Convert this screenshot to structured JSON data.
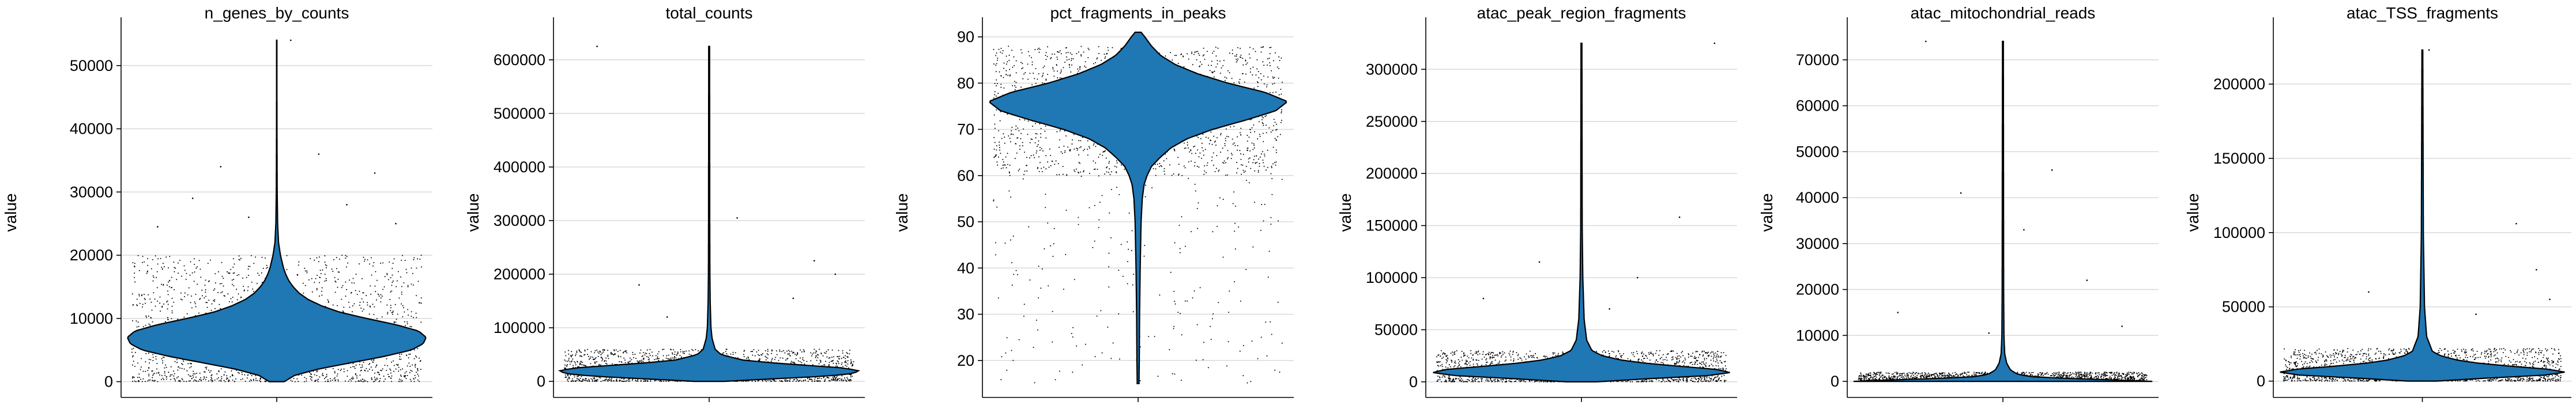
{
  "chart_data": [
    {
      "type": "violin",
      "title": "n_genes_by_counts",
      "ylabel": "value",
      "ylim": [
        -2500,
        56000
      ],
      "yticks": [
        0,
        10000,
        20000,
        30000,
        40000,
        50000
      ],
      "ytick_labels": [
        "0",
        "10000",
        "20000",
        "30000",
        "40000",
        "50000"
      ],
      "grid": true,
      "violin": {
        "min": 0,
        "max": 54000,
        "median": 7200,
        "mode": 7200,
        "profile": [
          [
            0,
            0.05
          ],
          [
            1000,
            0.12
          ],
          [
            2000,
            0.28
          ],
          [
            3000,
            0.5
          ],
          [
            4000,
            0.72
          ],
          [
            5000,
            0.9
          ],
          [
            6000,
            0.98
          ],
          [
            7000,
            1.0
          ],
          [
            8000,
            0.95
          ],
          [
            9000,
            0.8
          ],
          [
            10000,
            0.6
          ],
          [
            11000,
            0.42
          ],
          [
            12000,
            0.3
          ],
          [
            13000,
            0.21
          ],
          [
            14000,
            0.15
          ],
          [
            15000,
            0.11
          ],
          [
            16000,
            0.08
          ],
          [
            17000,
            0.06
          ],
          [
            18000,
            0.045
          ],
          [
            20000,
            0.025
          ],
          [
            22000,
            0.012
          ],
          [
            25000,
            0.006
          ],
          [
            30000,
            0.003
          ],
          [
            40000,
            0.0015
          ],
          [
            54000,
            0.001
          ]
        ]
      },
      "scatter": {
        "core_min": 0,
        "core_max": 20000,
        "tail_points": [
          [
            0.3,
            36000
          ],
          [
            -0.4,
            34000
          ],
          [
            0.7,
            33000
          ],
          [
            -0.6,
            29000
          ],
          [
            0.5,
            28000
          ],
          [
            -0.2,
            26000
          ],
          [
            0.85,
            25000
          ],
          [
            -0.85,
            24500
          ],
          [
            0.1,
            54000
          ]
        ]
      }
    },
    {
      "type": "violin",
      "title": "total_counts",
      "ylabel": "value",
      "ylim": [
        -30000,
        660000
      ],
      "yticks": [
        0,
        100000,
        200000,
        300000,
        400000,
        500000,
        600000
      ],
      "ytick_labels": [
        "0",
        "100000",
        "200000",
        "300000",
        "400000",
        "500000",
        "600000"
      ],
      "grid": true,
      "violin": {
        "min": 0,
        "max": 625000,
        "median": 20000,
        "mode": 18000,
        "profile": [
          [
            0,
            0.1
          ],
          [
            5000,
            0.45
          ],
          [
            10000,
            0.8
          ],
          [
            15000,
            0.97
          ],
          [
            20000,
            1.0
          ],
          [
            25000,
            0.9
          ],
          [
            30000,
            0.65
          ],
          [
            35000,
            0.4
          ],
          [
            40000,
            0.22
          ],
          [
            50000,
            0.08
          ],
          [
            60000,
            0.04
          ],
          [
            80000,
            0.02
          ],
          [
            100000,
            0.012
          ],
          [
            150000,
            0.007
          ],
          [
            200000,
            0.005
          ],
          [
            300000,
            0.004
          ],
          [
            625000,
            0.003
          ]
        ]
      },
      "scatter": {
        "core_min": 0,
        "core_max": 60000,
        "tail_points": [
          [
            -0.8,
            625000
          ],
          [
            0.2,
            305000
          ],
          [
            0.75,
            225000
          ],
          [
            -0.5,
            180000
          ],
          [
            0.6,
            155000
          ],
          [
            -0.3,
            120000
          ],
          [
            0.9,
            200000
          ]
        ]
      }
    },
    {
      "type": "violin",
      "title": "pct_fragments_in_peaks",
      "ylabel": "value",
      "ylim": [
        12,
        92
      ],
      "yticks": [
        20,
        30,
        40,
        50,
        60,
        70,
        80,
        90
      ],
      "ytick_labels": [
        "20",
        "30",
        "40",
        "50",
        "60",
        "70",
        "80",
        "90"
      ],
      "grid": true,
      "violin": {
        "min": 15,
        "max": 91,
        "median": 76,
        "mode": 76,
        "profile": [
          [
            15,
            0.006
          ],
          [
            20,
            0.008
          ],
          [
            30,
            0.01
          ],
          [
            40,
            0.014
          ],
          [
            50,
            0.02
          ],
          [
            55,
            0.028
          ],
          [
            58,
            0.04
          ],
          [
            60,
            0.06
          ],
          [
            62,
            0.09
          ],
          [
            64,
            0.15
          ],
          [
            66,
            0.22
          ],
          [
            68,
            0.33
          ],
          [
            70,
            0.5
          ],
          [
            72,
            0.72
          ],
          [
            74,
            0.92
          ],
          [
            76,
            1.0
          ],
          [
            78,
            0.85
          ],
          [
            80,
            0.6
          ],
          [
            82,
            0.4
          ],
          [
            84,
            0.25
          ],
          [
            86,
            0.15
          ],
          [
            88,
            0.09
          ],
          [
            90,
            0.045
          ],
          [
            91,
            0.02
          ]
        ]
      },
      "scatter": {
        "core_min": 60,
        "core_max": 88,
        "tail_min": 15,
        "tail_max": 60
      }
    },
    {
      "type": "violin",
      "title": "atac_peak_region_fragments",
      "ylabel": "value",
      "ylim": [
        -15000,
        340000
      ],
      "yticks": [
        0,
        50000,
        100000,
        150000,
        200000,
        250000,
        300000
      ],
      "ytick_labels": [
        "0",
        "50000",
        "100000",
        "150000",
        "200000",
        "250000",
        "300000"
      ],
      "grid": true,
      "violin": {
        "min": 0,
        "max": 325000,
        "median": 10000,
        "mode": 9000,
        "profile": [
          [
            0,
            0.1
          ],
          [
            3000,
            0.45
          ],
          [
            6000,
            0.85
          ],
          [
            9000,
            1.0
          ],
          [
            12000,
            0.9
          ],
          [
            15000,
            0.65
          ],
          [
            18000,
            0.42
          ],
          [
            21000,
            0.26
          ],
          [
            25000,
            0.14
          ],
          [
            30000,
            0.07
          ],
          [
            40000,
            0.035
          ],
          [
            60000,
            0.018
          ],
          [
            100000,
            0.009
          ],
          [
            150000,
            0.005
          ],
          [
            325000,
            0.003
          ]
        ]
      },
      "scatter": {
        "core_min": 0,
        "core_max": 30000,
        "tail_points": [
          [
            0.95,
            325000
          ],
          [
            0.7,
            158000
          ],
          [
            -0.3,
            115000
          ],
          [
            0.4,
            100000
          ],
          [
            -0.7,
            80000
          ],
          [
            0.2,
            70000
          ]
        ]
      }
    },
    {
      "type": "violin",
      "title": "atac_mitochondrial_reads",
      "ylabel": "value",
      "ylim": [
        -3500,
        77000
      ],
      "yticks": [
        0,
        10000,
        20000,
        30000,
        40000,
        50000,
        60000,
        70000
      ],
      "ytick_labels": [
        "0",
        "10000",
        "20000",
        "30000",
        "40000",
        "50000",
        "60000",
        "70000"
      ],
      "grid": true,
      "violin": {
        "min": 0,
        "max": 74000,
        "median": 200,
        "mode": 100,
        "profile": [
          [
            0,
            1.0
          ],
          [
            300,
            0.75
          ],
          [
            600,
            0.45
          ],
          [
            1000,
            0.2
          ],
          [
            1500,
            0.1
          ],
          [
            2500,
            0.05
          ],
          [
            4000,
            0.025
          ],
          [
            6000,
            0.012
          ],
          [
            10000,
            0.007
          ],
          [
            20000,
            0.005
          ],
          [
            74000,
            0.003
          ]
        ]
      },
      "scatter": {
        "core_min": 0,
        "core_max": 2000,
        "tail_points": [
          [
            -0.55,
            74000
          ],
          [
            0.35,
            46000
          ],
          [
            -0.3,
            41000
          ],
          [
            0.15,
            33000
          ],
          [
            0.6,
            22000
          ],
          [
            -0.75,
            15000
          ],
          [
            0.85,
            12000
          ],
          [
            -0.1,
            10500
          ]
        ]
      }
    },
    {
      "type": "violin",
      "title": "atac_TSS_fragments",
      "ylabel": "value",
      "ylim": [
        -11000,
        238000
      ],
      "yticks": [
        0,
        50000,
        100000,
        150000,
        200000
      ],
      "ytick_labels": [
        "0",
        "50000",
        "100000",
        "150000",
        "200000"
      ],
      "grid": true,
      "violin": {
        "min": 0,
        "max": 223000,
        "median": 6500,
        "mode": 6000,
        "profile": [
          [
            0,
            0.1
          ],
          [
            2000,
            0.45
          ],
          [
            4000,
            0.85
          ],
          [
            6000,
            1.0
          ],
          [
            8000,
            0.88
          ],
          [
            10000,
            0.62
          ],
          [
            12000,
            0.4
          ],
          [
            14000,
            0.25
          ],
          [
            17000,
            0.13
          ],
          [
            20000,
            0.07
          ],
          [
            30000,
            0.03
          ],
          [
            50000,
            0.015
          ],
          [
            100000,
            0.007
          ],
          [
            223000,
            0.003
          ]
        ]
      },
      "scatter": {
        "core_min": 0,
        "core_max": 22000,
        "tail_points": [
          [
            0.05,
            223000
          ],
          [
            0.7,
            106000
          ],
          [
            0.85,
            75000
          ],
          [
            0.95,
            55000
          ],
          [
            -0.4,
            60000
          ],
          [
            0.4,
            45000
          ]
        ]
      }
    }
  ]
}
